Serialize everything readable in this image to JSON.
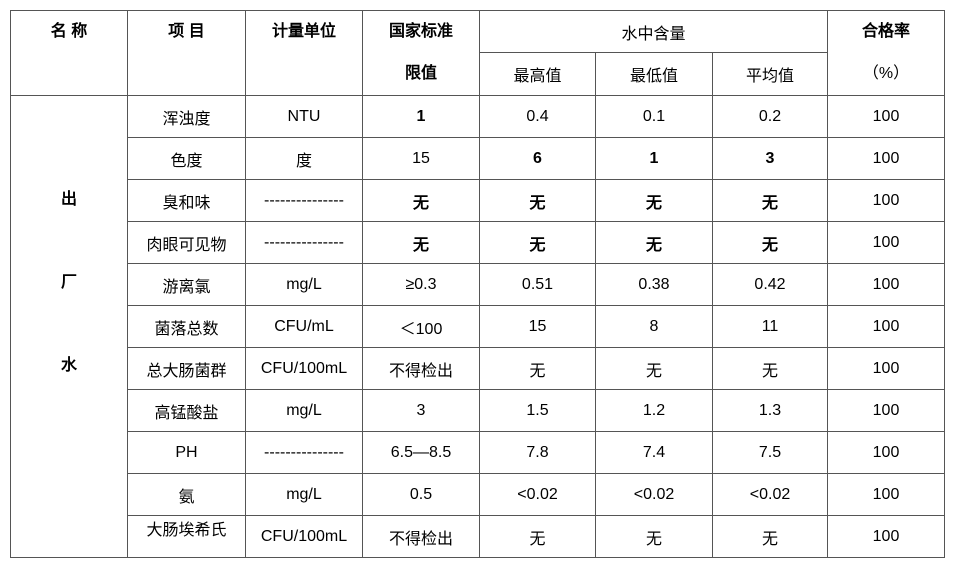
{
  "header": {
    "name": "名 称",
    "item": "项 目",
    "unit": "计量单位",
    "limit": [
      "国家标准",
      "限值"
    ],
    "content": "水中含量",
    "content_columns": [
      "最高值",
      "最低值",
      "平均值"
    ],
    "rate": [
      "合格率",
      "（%）"
    ]
  },
  "group": [
    "出",
    "厂",
    "水"
  ],
  "rows": [
    [
      "浑浊度",
      "NTU",
      "1",
      "0.4",
      "0.1",
      "0.2",
      "100"
    ],
    [
      "色度",
      "度",
      "15",
      "6",
      "1",
      "3",
      "100"
    ],
    [
      "臭和味",
      "---------------",
      "无",
      "无",
      "无",
      "无",
      "100"
    ],
    [
      "肉眼可见物",
      "---------------",
      "无",
      "无",
      "无",
      "无",
      "100"
    ],
    [
      "游离氯",
      "mg/L",
      "≥0.3",
      "0.51",
      "0.38",
      "0.42",
      "100"
    ],
    [
      "菌落总数",
      "CFU/mL",
      "＜100",
      "15",
      "8",
      "11",
      "100"
    ],
    [
      "总大肠菌群",
      "CFU/100mL",
      "不得检出",
      "无",
      "无",
      "无",
      "100"
    ],
    [
      "高锰酸盐",
      "mg/L",
      "3",
      "1.5",
      "1.2",
      "1.3",
      "100"
    ],
    [
      "PH",
      "---------------",
      "6.5—8.5",
      "7.8",
      "7.4",
      "7.5",
      "100"
    ],
    [
      "氨",
      "mg/L",
      "0.5",
      "<0.02",
      "<0.02",
      "<0.02",
      "100"
    ],
    [
      "大肠埃希氏",
      "CFU/100mL",
      "不得检出",
      "无",
      "无",
      "无",
      "100"
    ]
  ]
}
